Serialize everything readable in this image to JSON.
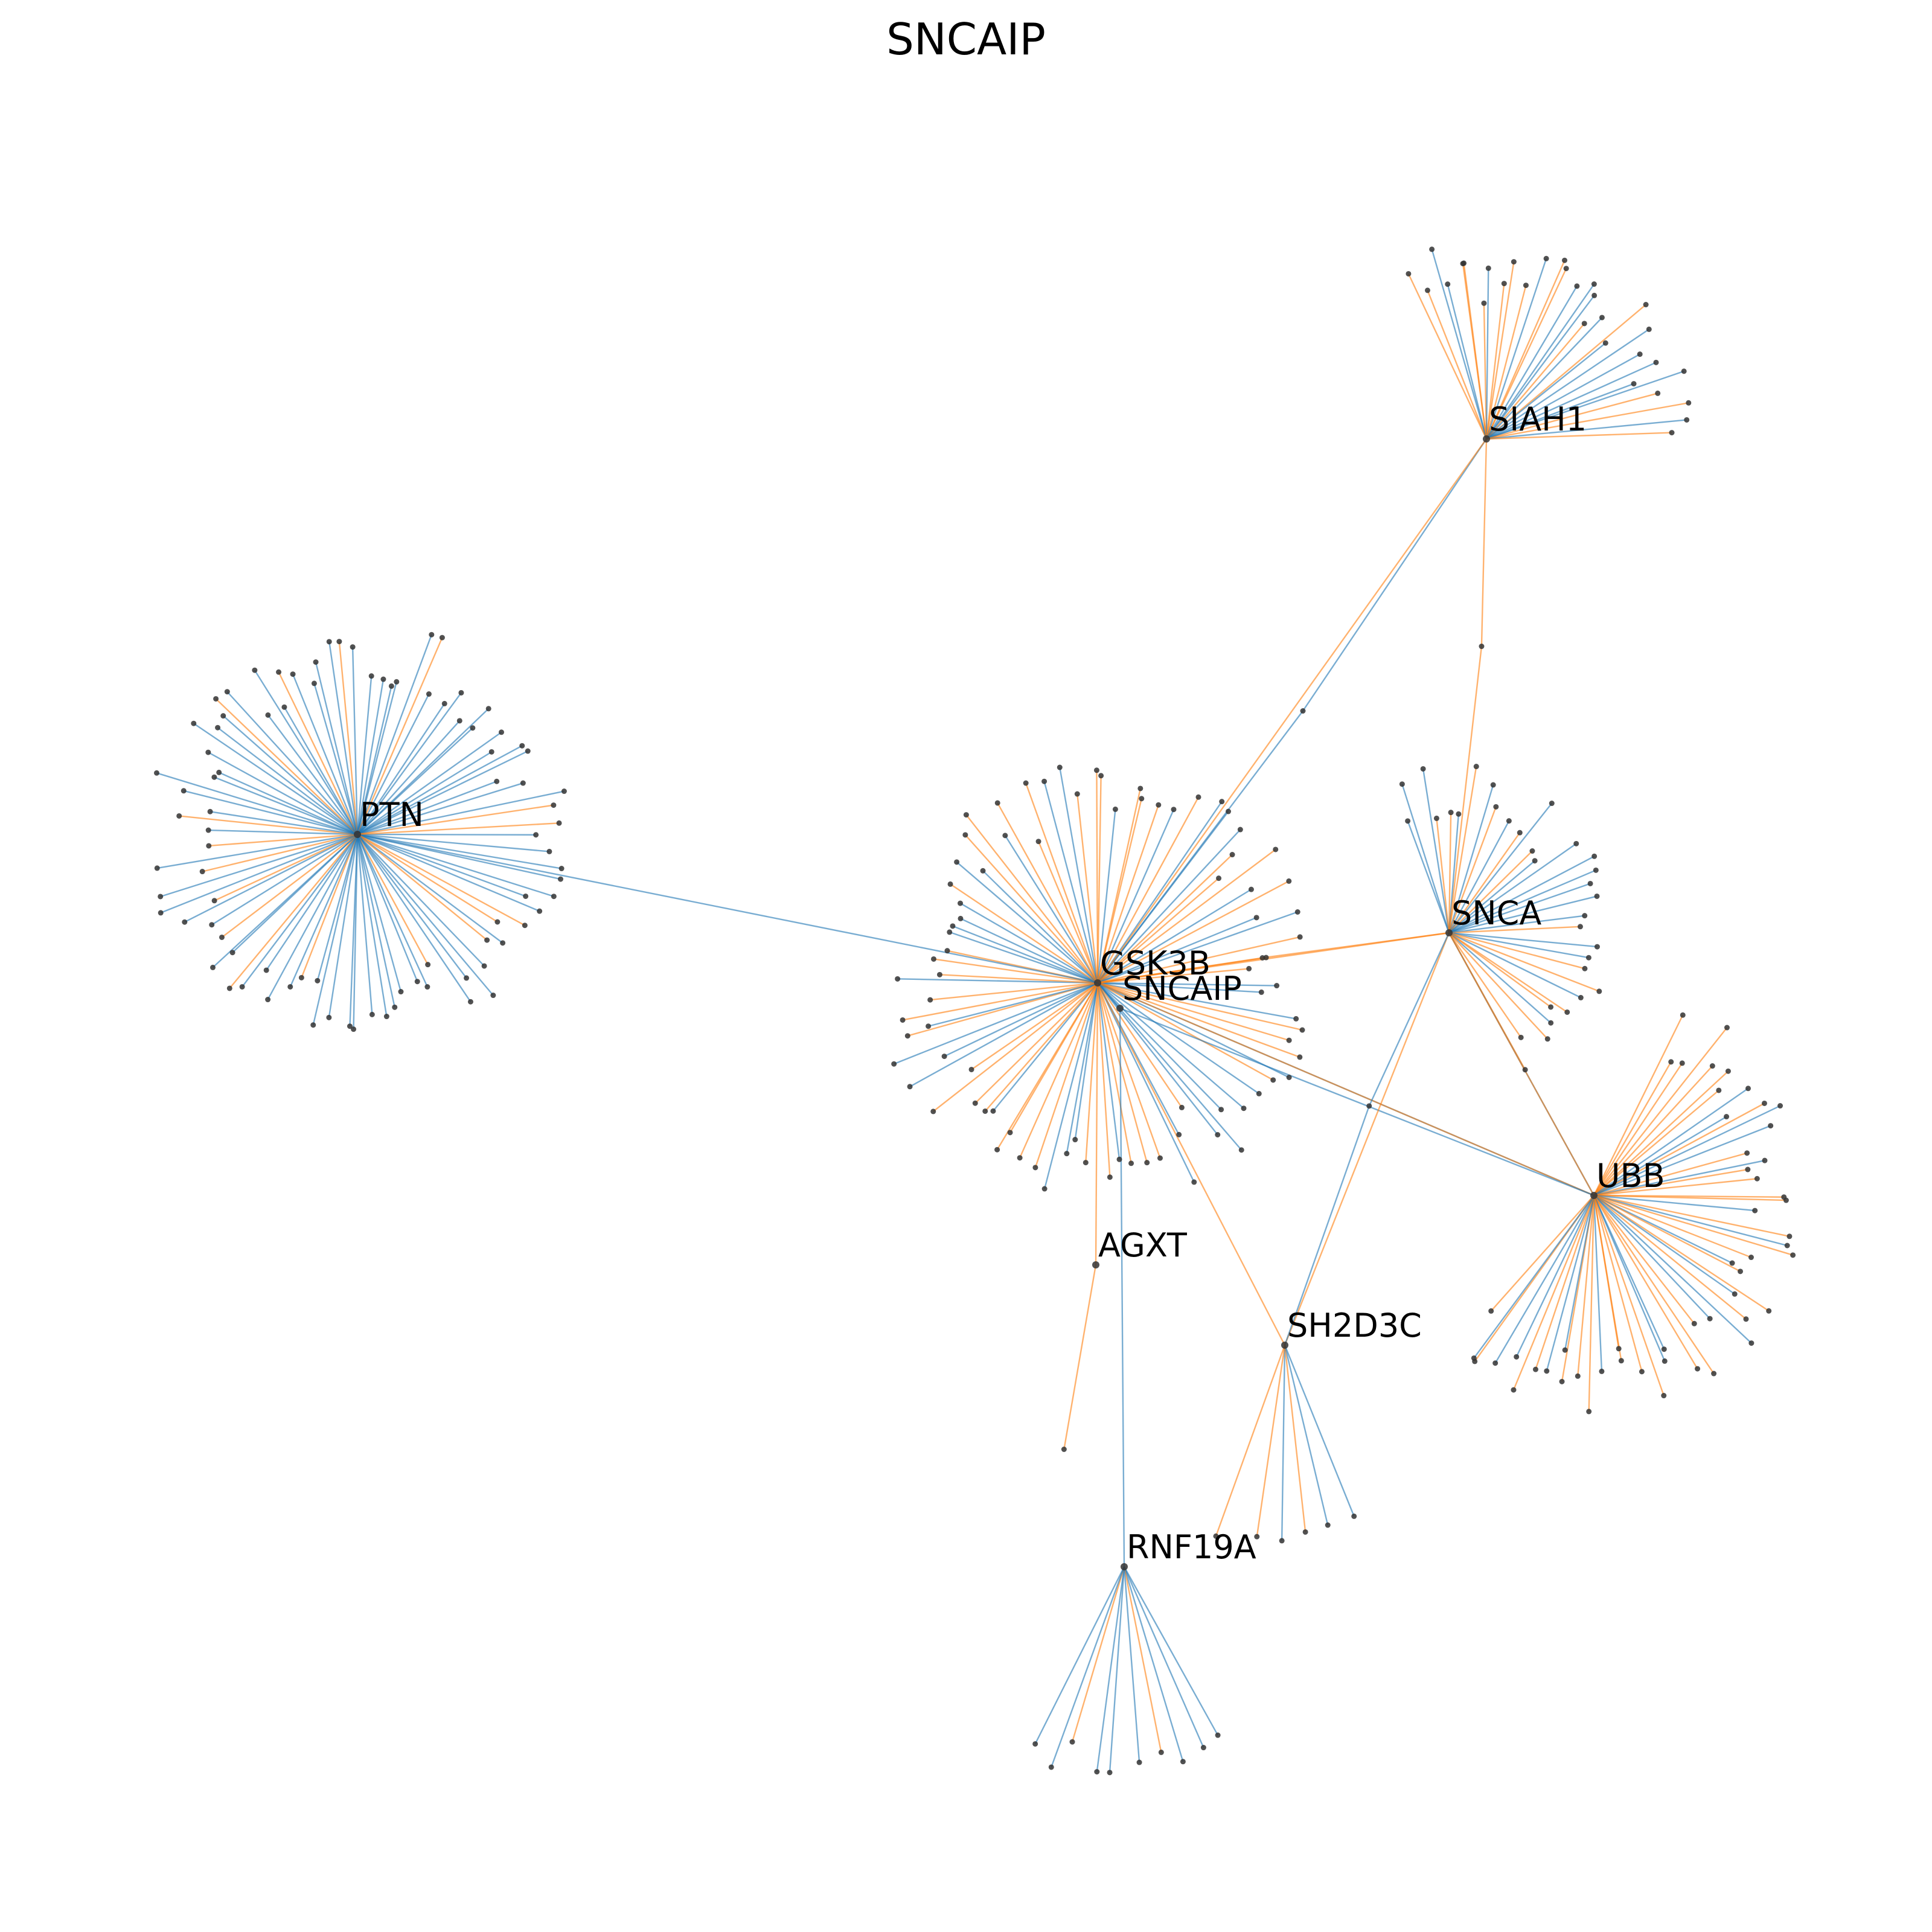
{
  "title": "SNCAIP",
  "colors": {
    "edge_blue": "#1f77b4",
    "edge_orange": "#ff7f0e",
    "node": "#333333",
    "label": "#000000",
    "background": "#ffffff"
  },
  "network": {
    "hubs": [
      {
        "id": "PTN",
        "label": "PTN"
      },
      {
        "id": "GSK3B",
        "label": "GSK3B"
      },
      {
        "id": "SNCAIP",
        "label": "SNCAIP"
      },
      {
        "id": "SIAH1",
        "label": "SIAH1"
      },
      {
        "id": "SNCA",
        "label": "SNCA"
      },
      {
        "id": "UBB",
        "label": "UBB"
      },
      {
        "id": "AGXT",
        "label": "AGXT"
      },
      {
        "id": "SH2D3C",
        "label": "SH2D3C"
      },
      {
        "id": "RNF19A",
        "label": "RNF19A"
      }
    ],
    "hub_links": [
      {
        "source": "PTN",
        "target": "GSK3B",
        "color": "blue"
      },
      {
        "source": "GSK3B",
        "target": "SIAH1",
        "color": "blue",
        "via_node": true
      },
      {
        "source": "GSK3B",
        "target": "SIAH1",
        "color": "orange"
      },
      {
        "source": "SIAH1",
        "target": "SNCA",
        "color": "orange",
        "via_node": true
      },
      {
        "source": "GSK3B",
        "target": "SNCA",
        "color": "orange",
        "via_node": true
      },
      {
        "source": "GSK3B",
        "target": "SNCA",
        "color": "orange"
      },
      {
        "source": "GSK3B",
        "target": "UBB",
        "color": "blue"
      },
      {
        "source": "GSK3B",
        "target": "UBB",
        "color": "orange"
      },
      {
        "source": "SNCAIP",
        "target": "UBB",
        "color": "blue"
      },
      {
        "source": "SNCA",
        "target": "UBB",
        "color": "blue"
      },
      {
        "source": "SNCA",
        "target": "UBB",
        "color": "orange"
      },
      {
        "source": "SNCA",
        "target": "SH2D3C",
        "color": "orange"
      },
      {
        "source": "SNCA",
        "target": "SH2D3C",
        "color": "blue",
        "via_node": true
      },
      {
        "source": "GSK3B",
        "target": "SH2D3C",
        "color": "orange"
      },
      {
        "source": "GSK3B",
        "target": "AGXT",
        "color": "orange"
      },
      {
        "source": "SNCAIP",
        "target": "RNF19A",
        "color": "blue"
      },
      {
        "source": "GSK3B",
        "target": "SNCAIP",
        "color": "blue"
      }
    ],
    "leaf_counts": {
      "PTN": 88,
      "GSK3B": 82,
      "SIAH1": 30,
      "SNCA": 32,
      "UBB": 52,
      "SH2D3C": 6,
      "RNF19A": 10,
      "AGXT": 1
    }
  }
}
